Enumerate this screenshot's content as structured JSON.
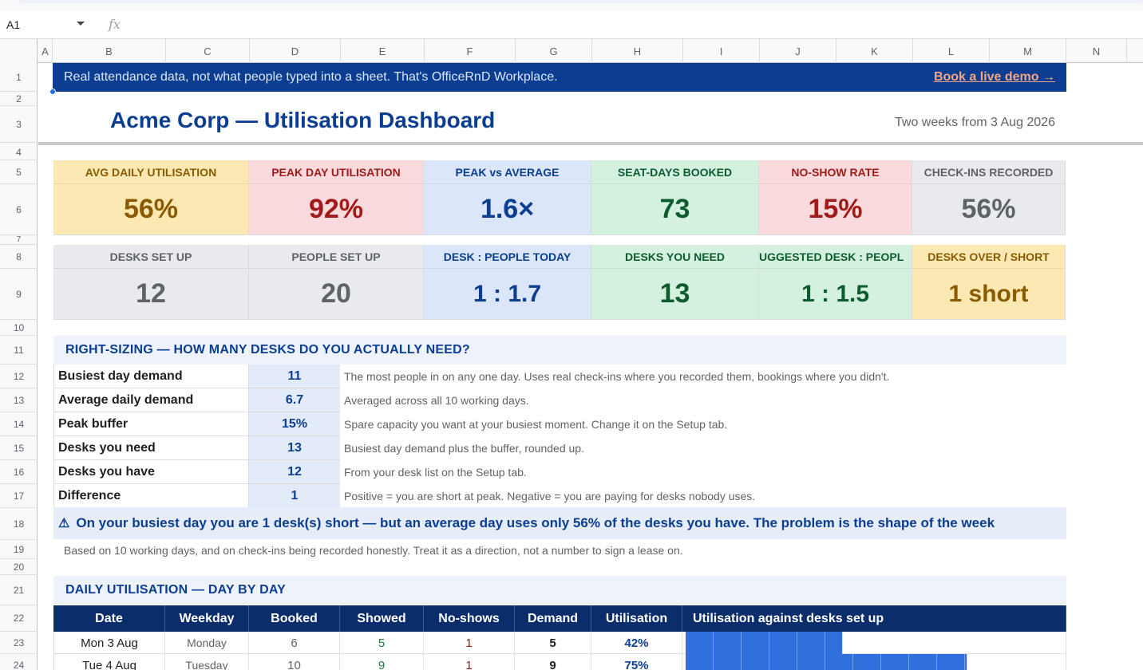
{
  "formula_bar": {
    "cell_ref": "A1",
    "fx_icon": "fx"
  },
  "columns": [
    "A",
    "B",
    "C",
    "D",
    "E",
    "F",
    "G",
    "H",
    "I",
    "J",
    "K",
    "L",
    "M",
    "N"
  ],
  "rows": [
    "1",
    "2",
    "3",
    "4",
    "5",
    "6",
    "7",
    "8",
    "9",
    "10",
    "11",
    "12",
    "13",
    "14",
    "15",
    "16",
    "17",
    "18",
    "19",
    "20",
    "21",
    "22",
    "23",
    "24"
  ],
  "banner": {
    "text": "Real attendance data, not what people typed into a sheet. That's OfficeRnD Workplace.",
    "link": "Book a live demo →"
  },
  "header": {
    "title": "Acme Corp — Utilisation Dashboard",
    "period": "Two weeks from 3 Aug 2026"
  },
  "kpis_row1": [
    {
      "label": "AVG DAILY UTILISATION",
      "value": "56%",
      "color": "amber"
    },
    {
      "label": "PEAK DAY UTILISATION",
      "value": "92%",
      "color": "red"
    },
    {
      "label": "PEAK vs AVERAGE",
      "value": "1.6×",
      "color": "blue"
    },
    {
      "label": "SEAT-DAYS BOOKED",
      "value": "73",
      "color": "green"
    },
    {
      "label": "NO-SHOW RATE",
      "value": "15%",
      "color": "red"
    },
    {
      "label": "CHECK-INS RECORDED",
      "value": "56%",
      "color": "grey"
    }
  ],
  "kpis_row2": [
    {
      "label": "DESKS SET UP",
      "value": "12",
      "color": "grey"
    },
    {
      "label": "PEOPLE SET UP",
      "value": "20",
      "color": "grey"
    },
    {
      "label": "DESK : PEOPLE TODAY",
      "value": "1 : 1.7",
      "color": "blue"
    },
    {
      "label": "DESKS YOU NEED",
      "value": "13",
      "color": "green"
    },
    {
      "label": "UGGESTED DESK : PEOPL",
      "value": "1 : 1.5",
      "color": "green"
    },
    {
      "label": "DESKS OVER / SHORT",
      "value": "1 short",
      "color": "amber"
    }
  ],
  "right_sizing": {
    "section_title": "RIGHT-SIZING  —  HOW MANY DESKS DO YOU ACTUALLY NEED?",
    "rows": [
      {
        "label": "Busiest day demand",
        "value": "11",
        "desc": "The most people in on any one day. Uses real check-ins where you recorded them, bookings where you didn't."
      },
      {
        "label": "Average daily demand",
        "value": "6.7",
        "desc": "Averaged across all 10 working days."
      },
      {
        "label": "Peak buffer",
        "value": "15%",
        "desc": "Spare capacity you want at your busiest moment. Change it on the Setup tab."
      },
      {
        "label": "Desks you need",
        "value": "13",
        "desc": "Busiest day demand plus the buffer, rounded up."
      },
      {
        "label": "Desks you have",
        "value": "12",
        "desc": "From your desk list on the Setup tab."
      },
      {
        "label": "Difference",
        "value": "1",
        "desc": "Positive = you are short at peak. Negative = you are paying for desks nobody uses."
      }
    ],
    "alert": "On your busiest day you are 1 desk(s) short — but an average day uses only 56% of the desks you have. The problem is the shape of the week",
    "footnote": "Based on 10 working days, and on check-ins being recorded honestly. Treat it as a direction, not a number to sign a lease on."
  },
  "daily": {
    "section_title": "DAILY UTILISATION  —  DAY BY DAY",
    "columns": [
      "Date",
      "Weekday",
      "Booked",
      "Showed",
      "No-shows",
      "Demand",
      "Utilisation",
      "Utilisation against desks set up"
    ],
    "rows": [
      {
        "date": "Mon 3 Aug",
        "weekday": "Monday",
        "booked": "6",
        "showed": "5",
        "noshows": "1",
        "demand": "5",
        "utilisation": "42%",
        "fraction": 0.42
      },
      {
        "date": "Tue 4 Aug",
        "weekday": "Tuesday",
        "booked": "10",
        "showed": "9",
        "noshows": "1",
        "demand": "9",
        "utilisation": "75%",
        "fraction": 0.75
      }
    ]
  },
  "colors": {
    "brand_navy": "#0b3d91",
    "header_navy": "#0b2d6b",
    "bar_blue": "#2f6fde",
    "link_orange": "#f4a582"
  }
}
